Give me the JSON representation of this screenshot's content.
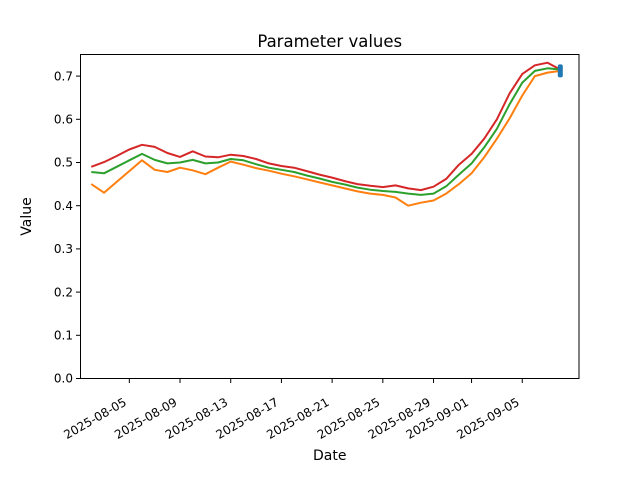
{
  "figure": {
    "background": "#ffffff",
    "spine_color": "#000000"
  },
  "chart_data": {
    "type": "line",
    "title": "Parameter values",
    "xlabel": "Date",
    "ylabel": "Value",
    "grid": false,
    "legend": null,
    "ylim": [
      0.0,
      0.75
    ],
    "yticks": [
      0.0,
      0.1,
      0.2,
      0.3,
      0.4,
      0.5,
      0.6,
      0.7
    ],
    "xticks": [
      "2025-08-05",
      "2025-08-09",
      "2025-08-13",
      "2025-08-17",
      "2025-08-21",
      "2025-08-25",
      "2025-08-29",
      "2025-09-01",
      "2025-09-05"
    ],
    "x": [
      "2025-08-02",
      "2025-08-03",
      "2025-08-04",
      "2025-08-05",
      "2025-08-06",
      "2025-08-07",
      "2025-08-08",
      "2025-08-09",
      "2025-08-10",
      "2025-08-11",
      "2025-08-12",
      "2025-08-13",
      "2025-08-14",
      "2025-08-15",
      "2025-08-16",
      "2025-08-17",
      "2025-08-18",
      "2025-08-19",
      "2025-08-20",
      "2025-08-21",
      "2025-08-22",
      "2025-08-23",
      "2025-08-24",
      "2025-08-25",
      "2025-08-26",
      "2025-08-27",
      "2025-08-28",
      "2025-08-29",
      "2025-08-30",
      "2025-08-31",
      "2025-09-01",
      "2025-09-02",
      "2025-09-03",
      "2025-09-04",
      "2025-09-05",
      "2025-09-06",
      "2025-09-07",
      "2025-09-08"
    ],
    "series": [
      {
        "name": "red-line",
        "color": "#d62728",
        "values": [
          0.49,
          0.501,
          0.515,
          0.53,
          0.541,
          0.536,
          0.522,
          0.513,
          0.526,
          0.514,
          0.512,
          0.518,
          0.515,
          0.508,
          0.498,
          0.492,
          0.488,
          0.48,
          0.472,
          0.465,
          0.457,
          0.45,
          0.446,
          0.443,
          0.447,
          0.44,
          0.436,
          0.444,
          0.462,
          0.495,
          0.52,
          0.555,
          0.6,
          0.66,
          0.705,
          0.725,
          0.731,
          0.715
        ]
      },
      {
        "name": "green-line",
        "color": "#2ca02c",
        "values": [
          0.478,
          0.475,
          0.49,
          0.505,
          0.52,
          0.506,
          0.498,
          0.5,
          0.506,
          0.498,
          0.5,
          0.508,
          0.505,
          0.496,
          0.488,
          0.483,
          0.478,
          0.47,
          0.463,
          0.455,
          0.449,
          0.442,
          0.437,
          0.434,
          0.432,
          0.428,
          0.425,
          0.428,
          0.445,
          0.472,
          0.498,
          0.535,
          0.578,
          0.635,
          0.685,
          0.712,
          0.718,
          0.715
        ]
      },
      {
        "name": "orange-line",
        "color": "#ff7f0e",
        "values": [
          0.45,
          0.43,
          0.455,
          0.48,
          0.505,
          0.483,
          0.478,
          0.488,
          0.482,
          0.473,
          0.488,
          0.502,
          0.495,
          0.487,
          0.481,
          0.474,
          0.468,
          0.461,
          0.454,
          0.447,
          0.44,
          0.433,
          0.428,
          0.425,
          0.419,
          0.4,
          0.407,
          0.412,
          0.428,
          0.45,
          0.475,
          0.512,
          0.555,
          0.602,
          0.655,
          0.7,
          0.708,
          0.712
        ]
      }
    ],
    "end_marker": {
      "name": "end-marker",
      "color": "#1f77b4",
      "x": "2025-09-08",
      "value": 0.712
    }
  }
}
